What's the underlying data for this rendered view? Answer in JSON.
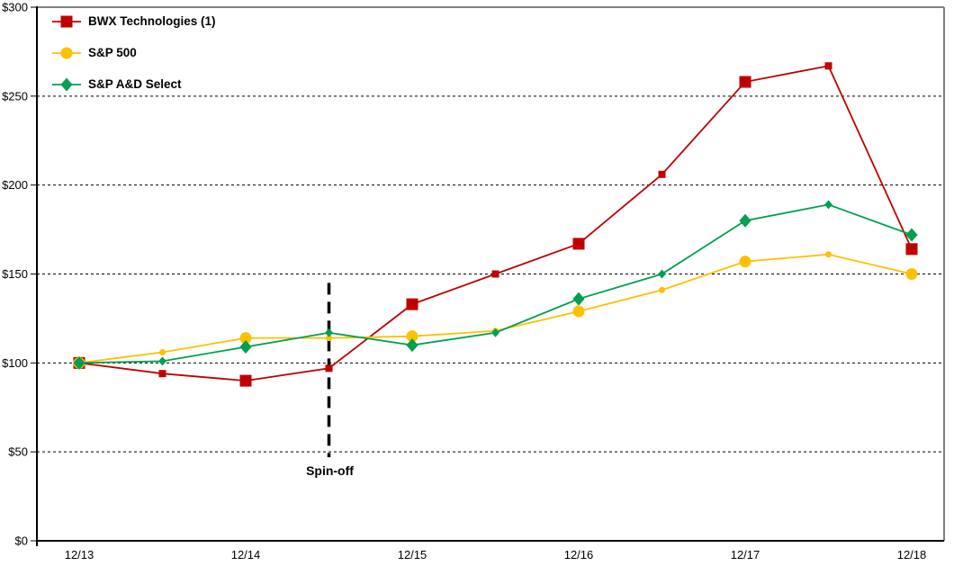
{
  "chart_data": {
    "type": "line",
    "title": "",
    "x": [
      "12/13",
      "6/14",
      "12/14",
      "6/15",
      "12/15",
      "6/16",
      "12/16",
      "6/17",
      "12/17",
      "6/18",
      "12/18"
    ],
    "x_axis_tick_labels": [
      "12/13",
      "12/14",
      "12/15",
      "12/16",
      "12/17",
      "12/18"
    ],
    "x_axis_tick_indices": [
      0,
      2,
      4,
      6,
      8,
      10
    ],
    "ylim": [
      0,
      300
    ],
    "ytick_step": 50,
    "y_prefix": "$",
    "y_tick_labels": [
      "$0",
      "$50",
      "$100",
      "$150",
      "$200",
      "$250",
      "$300"
    ],
    "grid": "horizontal-dashed",
    "legend_position": "top-left-inside",
    "series": [
      {
        "name": "BWX Technologies (1)",
        "color": "#C00000",
        "marker": "square",
        "values": [
          100,
          94,
          90,
          97,
          133,
          150,
          167,
          206,
          258,
          267,
          164
        ]
      },
      {
        "name": "S&P 500",
        "color": "#FFC000",
        "marker": "circle",
        "values": [
          100,
          106,
          114,
          114,
          115,
          118,
          129,
          141,
          157,
          161,
          150
        ]
      },
      {
        "name": "S&P A&D Select",
        "color": "#00A050",
        "marker": "diamond",
        "values": [
          100,
          101,
          109,
          117,
          110,
          117,
          136,
          150,
          180,
          189,
          172
        ]
      }
    ],
    "annotation": {
      "label": "Spin-off",
      "x_index": 3,
      "y_from": 47,
      "y_to": 145
    },
    "axis_colors": {
      "left_bottom": "#000000",
      "top_right": "#808080",
      "grid": "#000000"
    }
  }
}
